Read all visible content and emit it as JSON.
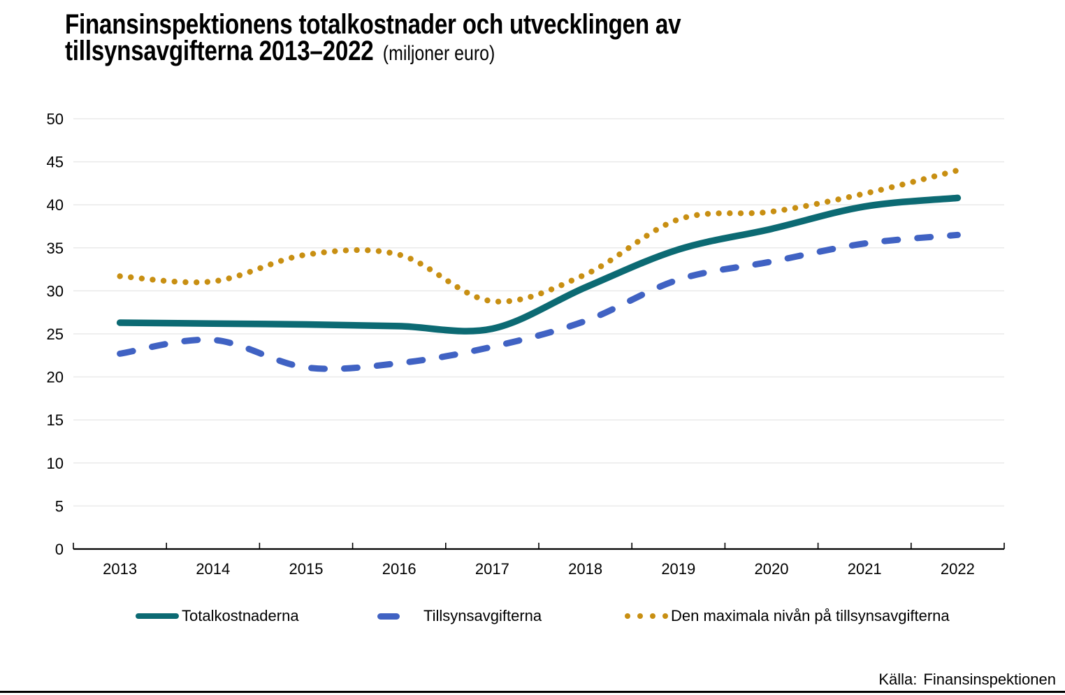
{
  "title": {
    "line1": "Finansinspektionens totalkostnader och utvecklingen av",
    "line2": "tillsynsavgifterna 2013–2022",
    "subtitle": "(miljoner euro)"
  },
  "source": {
    "label": "Källa:",
    "value": "Finansinspektionen"
  },
  "colors": {
    "grid": "#EAEAEA",
    "axis": "#000000",
    "text": "#000000",
    "teal": "#0C6A73",
    "blue": "#4062C3",
    "gold": "#C88F12"
  },
  "chart_data": {
    "type": "line",
    "title": "Finansinspektionens totalkostnader och utvecklingen av tillsynsavgifterna 2013–2022 (miljoner euro)",
    "x": [
      2013,
      2014,
      2015,
      2016,
      2017,
      2018,
      2019,
      2020,
      2021,
      2022
    ],
    "series": [
      {
        "name": "Totalkostnaderna",
        "style": "solid",
        "color": "#0C6A73",
        "values": [
          26.3,
          26.2,
          26.1,
          25.9,
          25.6,
          30.4,
          34.8,
          37.2,
          39.8,
          40.8
        ]
      },
      {
        "name": "Tillsynsavgifterna",
        "style": "dashed",
        "color": "#4062C3",
        "values": [
          22.7,
          24.3,
          21.1,
          21.6,
          23.5,
          26.5,
          31.3,
          33.4,
          35.5,
          36.5
        ]
      },
      {
        "name": "Den maximala nivån på tillsynsavgifterna",
        "style": "dotted",
        "color": "#C88F12",
        "values": [
          31.7,
          31.1,
          34.2,
          34.2,
          28.8,
          31.9,
          38.3,
          39.2,
          41.3,
          44.0
        ]
      }
    ],
    "xlabel": "",
    "ylabel": "",
    "ylim": [
      0,
      50
    ],
    "ystep": 5,
    "grid": "horizontal",
    "legend_position": "bottom"
  }
}
